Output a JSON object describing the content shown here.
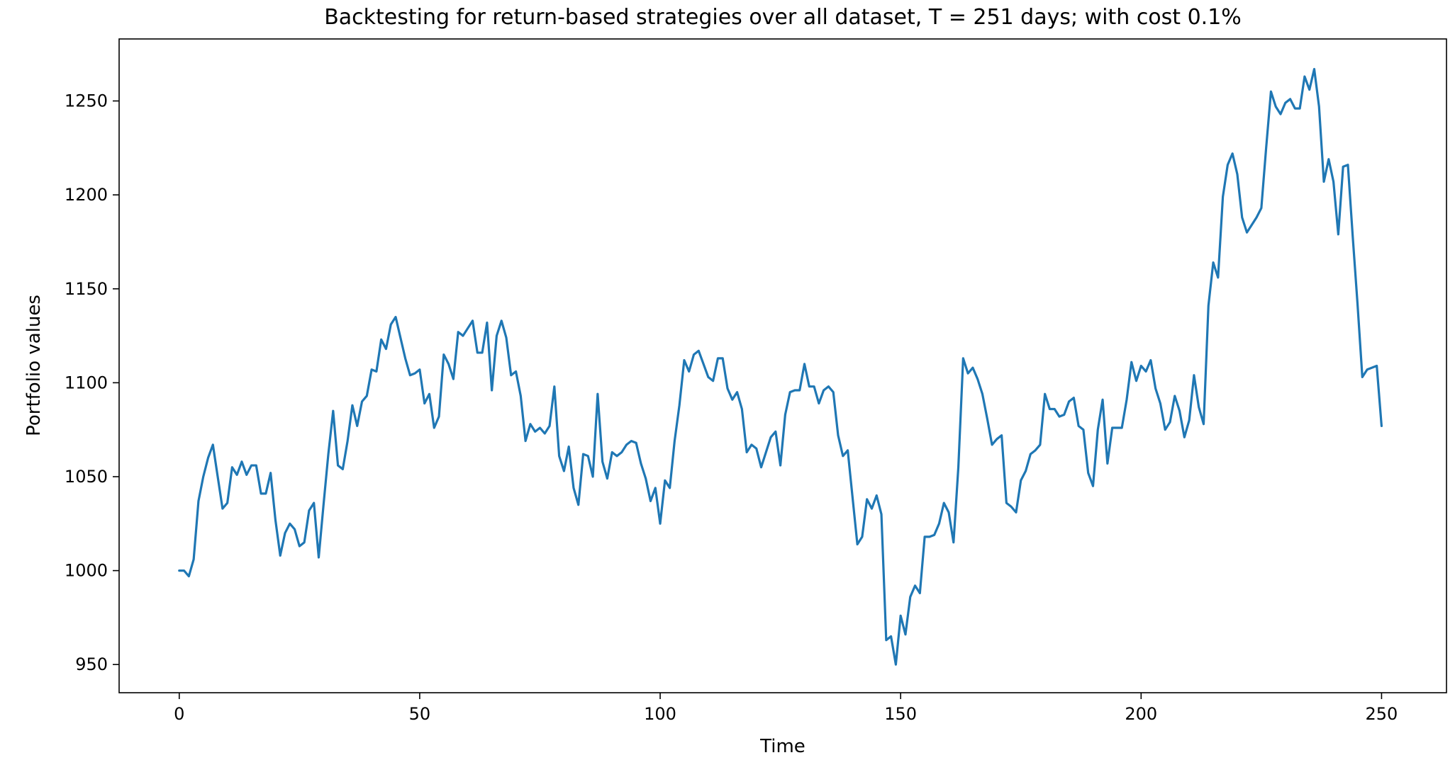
{
  "chart_data": {
    "type": "line",
    "title": "Backtesting for return-based strategies over all dataset, T = 251 days; with cost 0.1%",
    "xlabel": "Time",
    "ylabel": "Portfolio values",
    "xlim": [
      -12.5,
      263.5
    ],
    "ylim": [
      935,
      1283
    ],
    "xticks": [
      0,
      50,
      100,
      150,
      200,
      250
    ],
    "yticks": [
      950,
      1000,
      1050,
      1100,
      1150,
      1200,
      1250
    ],
    "grid": false,
    "legend": "none",
    "series": [
      {
        "color": "#1f77b4",
        "x_start": 0,
        "x_step": 1,
        "values": [
          1000,
          1000,
          997,
          1006,
          1037,
          1050,
          1060,
          1067,
          1050,
          1033,
          1036,
          1055,
          1051,
          1058,
          1051,
          1056,
          1056,
          1041,
          1041,
          1052,
          1027,
          1008,
          1020,
          1025,
          1022,
          1013,
          1015,
          1032,
          1036,
          1007,
          1035,
          1062,
          1085,
          1056,
          1054,
          1069,
          1088,
          1077,
          1090,
          1093,
          1107,
          1106,
          1123,
          1118,
          1131,
          1135,
          1124,
          1113,
          1104,
          1105,
          1107,
          1089,
          1094,
          1076,
          1082,
          1115,
          1110,
          1102,
          1127,
          1125,
          1129,
          1133,
          1116,
          1116,
          1132,
          1096,
          1125,
          1133,
          1124,
          1104,
          1106,
          1093,
          1069,
          1078,
          1074,
          1076,
          1073,
          1077,
          1098,
          1061,
          1053,
          1066,
          1044,
          1035,
          1062,
          1061,
          1050,
          1094,
          1058,
          1049,
          1063,
          1061,
          1063,
          1067,
          1069,
          1068,
          1057,
          1049,
          1037,
          1044,
          1025,
          1048,
          1044,
          1069,
          1088,
          1112,
          1106,
          1115,
          1117,
          1110,
          1103,
          1101,
          1113,
          1113,
          1097,
          1091,
          1095,
          1086,
          1063,
          1067,
          1065,
          1055,
          1063,
          1071,
          1074,
          1056,
          1083,
          1095,
          1096,
          1096,
          1110,
          1098,
          1098,
          1089,
          1096,
          1098,
          1095,
          1072,
          1061,
          1064,
          1039,
          1014,
          1018,
          1038,
          1033,
          1040,
          1030,
          963,
          965,
          950,
          976,
          966,
          986,
          992,
          988,
          1018,
          1018,
          1019,
          1025,
          1036,
          1031,
          1015,
          1055,
          1113,
          1105,
          1108,
          1102,
          1094,
          1081,
          1067,
          1070,
          1072,
          1036,
          1034,
          1031,
          1048,
          1053,
          1062,
          1064,
          1067,
          1094,
          1086,
          1086,
          1082,
          1083,
          1090,
          1092,
          1077,
          1075,
          1052,
          1045,
          1075,
          1091,
          1057,
          1076,
          1076,
          1076,
          1091,
          1111,
          1101,
          1109,
          1106,
          1112,
          1097,
          1089,
          1075,
          1079,
          1093,
          1085,
          1071,
          1080,
          1104,
          1087,
          1078,
          1141,
          1164,
          1156,
          1199,
          1216,
          1222,
          1211,
          1188,
          1180,
          1184,
          1188,
          1193,
          1225,
          1255,
          1247,
          1243,
          1249,
          1251,
          1246,
          1246,
          1263,
          1256,
          1267,
          1247,
          1207,
          1219,
          1207,
          1179,
          1215,
          1216,
          1178,
          1142,
          1103,
          1107,
          1108,
          1109,
          1077
        ]
      }
    ]
  }
}
